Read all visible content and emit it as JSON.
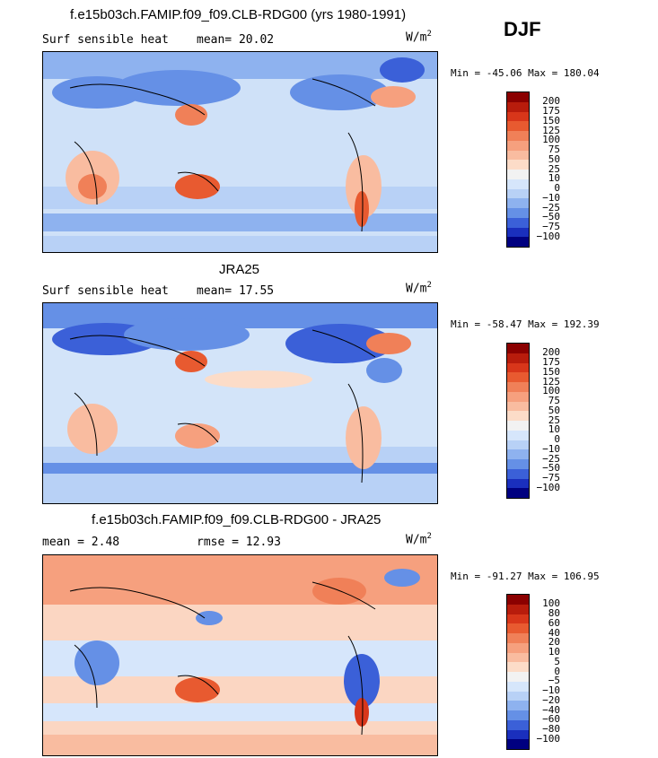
{
  "season": "DJF",
  "panels": [
    {
      "title": "f.e15b03ch.FAMIP.f09_f09.CLB-RDG00 (yrs 1980-1991)",
      "left_label": "Surf sensible heat",
      "mid_label": "mean=  20.02",
      "units_base": "W/m",
      "units_exp": "2",
      "minmax": "Min = -45.06 Max = 180.04",
      "colorbar": {
        "labels": [
          "200",
          "175",
          "150",
          "125",
          "100",
          "75",
          "50",
          "25",
          "10",
          "0",
          "−10",
          "−25",
          "−50",
          "−75",
          "−100"
        ],
        "colors": [
          "#8b0000",
          "#b81c0c",
          "#d8361a",
          "#e85a30",
          "#f08058",
          "#f6a07e",
          "#f9bca0",
          "#fcdcc8",
          "#f2f2f2",
          "#d6e6fb",
          "#b8d1f6",
          "#8eb2ef",
          "#6590e6",
          "#3b60d8",
          "#1a2fbd",
          "#000080"
        ]
      },
      "bg": "#cfe1f8",
      "hue": "sens"
    },
    {
      "title": "JRA25",
      "left_label": "Surf sensible heat",
      "mid_label": "mean=  17.55",
      "units_base": "W/m",
      "units_exp": "2",
      "minmax": "Min = -58.47 Max = 192.39",
      "colorbar": {
        "labels": [
          "200",
          "175",
          "150",
          "125",
          "100",
          "75",
          "50",
          "25",
          "10",
          "0",
          "−10",
          "−25",
          "−50",
          "−75",
          "−100"
        ],
        "colors": [
          "#8b0000",
          "#b81c0c",
          "#d8361a",
          "#e85a30",
          "#f08058",
          "#f6a07e",
          "#f9bca0",
          "#fcdcc8",
          "#f2f2f2",
          "#d6e6fb",
          "#b8d1f6",
          "#8eb2ef",
          "#6590e6",
          "#3b60d8",
          "#1a2fbd",
          "#000080"
        ]
      },
      "bg": "#d3e4f9",
      "hue": "sens"
    },
    {
      "title": "f.e15b03ch.FAMIP.f09_f09.CLB-RDG00 - JRA25",
      "left_label": "mean =    2.48",
      "mid_label": "rmse =   12.93",
      "units_base": "W/m",
      "units_exp": "2",
      "minmax": "Min = -91.27 Max = 106.95",
      "colorbar": {
        "labels": [
          "100",
          "80",
          "60",
          "40",
          "20",
          "10",
          "5",
          "0",
          "−5",
          "−10",
          "−20",
          "−40",
          "−60",
          "−80",
          "−100"
        ],
        "colors": [
          "#8b0000",
          "#b81c0c",
          "#d8361a",
          "#e85a30",
          "#f08058",
          "#f6a07e",
          "#f9bca0",
          "#fcdcc8",
          "#f2f2f2",
          "#d6e6fb",
          "#b8d1f6",
          "#8eb2ef",
          "#6590e6",
          "#3b60d8",
          "#1a2fbd",
          "#000080"
        ]
      },
      "bg": "#fbd6c2",
      "hue": "diff"
    }
  ]
}
